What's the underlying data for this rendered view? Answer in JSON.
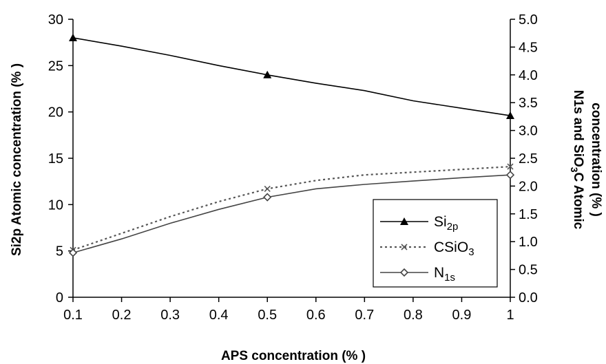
{
  "chart_data": {
    "type": "line",
    "xlabel": "APS concentration (% )",
    "ylabel_left": "Si2p Atomic concentration (% )",
    "ylabel_right_line1": "N1s and SiO",
    "ylabel_right_sub": "3",
    "ylabel_right_line1_tail": "C Atomic",
    "ylabel_right_line2": "concentration (% )",
    "xlim": [
      0.1,
      1
    ],
    "x_ticks": [
      "0.1",
      "0.2",
      "0.3",
      "0.4",
      "0.5",
      "0.6",
      "0.7",
      "0.8",
      "0.9",
      "1"
    ],
    "ylim_left": [
      0,
      30
    ],
    "y_left_ticks": [
      "0",
      "5",
      "10",
      "15",
      "20",
      "25",
      "30"
    ],
    "ylim_right": [
      0,
      5
    ],
    "y_right_ticks": [
      "0.0",
      "0.5",
      "1.0",
      "1.5",
      "2.0",
      "2.5",
      "3.0",
      "3.5",
      "4.0",
      "4.5",
      "5.0"
    ],
    "grid": false,
    "legend_position": "bottom-right",
    "series": [
      {
        "name": "Si2p",
        "legend_main": "Si",
        "legend_sub": "2p",
        "axis": "left",
        "x": [
          0.1,
          0.5,
          1
        ],
        "values": [
          28,
          24,
          19.6
        ],
        "curve_x": [
          0.1,
          0.2,
          0.3,
          0.4,
          0.5,
          0.6,
          0.7,
          0.8,
          0.9,
          1
        ],
        "curve_y": [
          28,
          27.1,
          26.1,
          25,
          24,
          23.1,
          22.3,
          21.2,
          20.4,
          19.6
        ],
        "marker": "triangle",
        "color": "#000000",
        "dash": "solid"
      },
      {
        "name": "CSiO3",
        "legend_main": "CSiO",
        "legend_sub": "3",
        "axis": "right",
        "x": [
          0.1,
          0.5,
          1
        ],
        "values": [
          0.85,
          1.95,
          2.35
        ],
        "curve_x": [
          0.1,
          0.2,
          0.3,
          0.4,
          0.5,
          0.6,
          0.7,
          0.8,
          0.9,
          1
        ],
        "curve_y": [
          0.85,
          1.15,
          1.45,
          1.72,
          1.95,
          2.1,
          2.2,
          2.25,
          2.3,
          2.35
        ],
        "marker": "x",
        "color": "#555555",
        "dash": "dotted"
      },
      {
        "name": "N1s",
        "legend_main": "N",
        "legend_sub": "1s",
        "axis": "right",
        "x": [
          0.1,
          0.5,
          1
        ],
        "values": [
          0.8,
          1.8,
          2.2
        ],
        "curve_x": [
          0.1,
          0.2,
          0.3,
          0.4,
          0.5,
          0.6,
          0.7,
          0.8,
          0.9,
          1
        ],
        "curve_y": [
          0.8,
          1.05,
          1.33,
          1.58,
          1.8,
          1.95,
          2.03,
          2.09,
          2.15,
          2.2
        ],
        "marker": "diamond",
        "color": "#444444",
        "dash": "solid"
      }
    ]
  }
}
